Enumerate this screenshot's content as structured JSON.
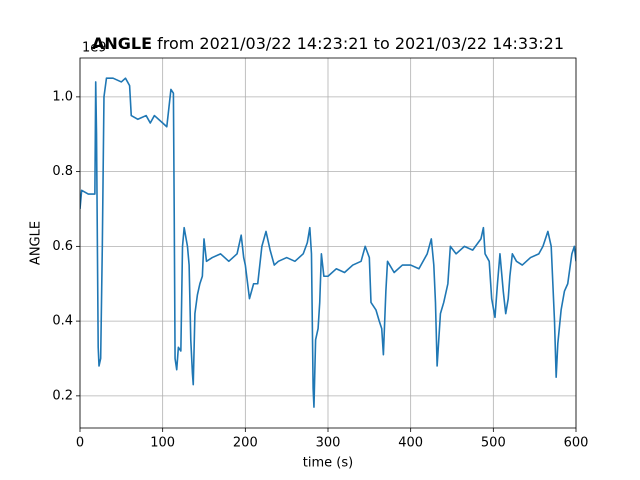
{
  "chart_data": {
    "type": "line",
    "title": {
      "variable": "ANGLE",
      "range": "from 2021/03/22 14:23:21 to 2021/03/22 14:33:21"
    },
    "xlabel": "time (s)",
    "ylabel": "ANGLE",
    "offset_label": "1e9",
    "xlim": [
      0,
      600
    ],
    "xticks": [
      0,
      100,
      200,
      300,
      400,
      500,
      600
    ],
    "ylim": [
      0.114,
      1.104
    ],
    "yticks": [
      0.2,
      0.4,
      0.6,
      0.8,
      {
        "value": 1.0,
        "label": "1.0"
      }
    ],
    "grid": true,
    "series": [
      {
        "name": "ANGLE",
        "color": "#1f77b4",
        "x": [
          0,
          2,
          10,
          18,
          19,
          20,
          22,
          23,
          25,
          27,
          29,
          32,
          40,
          50,
          55,
          60,
          62,
          70,
          80,
          85,
          90,
          100,
          105,
          110,
          113,
          114,
          115,
          117,
          119,
          122,
          124,
          126,
          130,
          132,
          134,
          136,
          137,
          139,
          142,
          145,
          148,
          150,
          153,
          160,
          170,
          180,
          190,
          195,
          198,
          200,
          205,
          210,
          215,
          220,
          225,
          230,
          235,
          240,
          250,
          260,
          270,
          275,
          278,
          280,
          282,
          283,
          285,
          288,
          290,
          292,
          295,
          300,
          310,
          320,
          330,
          340,
          345,
          350,
          352,
          358,
          362,
          365,
          367,
          370,
          372,
          380,
          390,
          400,
          410,
          420,
          425,
          428,
          430,
          432,
          434,
          436,
          440,
          445,
          448,
          455,
          465,
          475,
          485,
          488,
          490,
          495,
          498,
          502,
          505,
          508,
          512,
          515,
          518,
          520,
          523,
          528,
          535,
          545,
          555,
          560,
          566,
          570,
          572,
          574,
          576,
          578,
          582,
          586,
          590,
          595,
          598,
          600
        ],
        "values": [
          0.7,
          0.75,
          0.74,
          0.74,
          1.04,
          0.9,
          0.33,
          0.28,
          0.3,
          0.6,
          1.0,
          1.05,
          1.05,
          1.04,
          1.05,
          1.03,
          0.95,
          0.94,
          0.95,
          0.93,
          0.95,
          0.93,
          0.92,
          1.02,
          1.01,
          0.68,
          0.3,
          0.27,
          0.33,
          0.32,
          0.6,
          0.65,
          0.6,
          0.55,
          0.35,
          0.26,
          0.23,
          0.42,
          0.47,
          0.5,
          0.52,
          0.62,
          0.56,
          0.57,
          0.58,
          0.56,
          0.58,
          0.63,
          0.57,
          0.55,
          0.46,
          0.5,
          0.5,
          0.6,
          0.64,
          0.59,
          0.55,
          0.56,
          0.57,
          0.56,
          0.58,
          0.61,
          0.65,
          0.58,
          0.22,
          0.17,
          0.35,
          0.38,
          0.45,
          0.58,
          0.52,
          0.52,
          0.54,
          0.53,
          0.55,
          0.56,
          0.6,
          0.57,
          0.45,
          0.43,
          0.4,
          0.38,
          0.31,
          0.48,
          0.56,
          0.53,
          0.55,
          0.55,
          0.54,
          0.58,
          0.62,
          0.55,
          0.45,
          0.28,
          0.35,
          0.42,
          0.45,
          0.5,
          0.6,
          0.58,
          0.6,
          0.59,
          0.62,
          0.65,
          0.58,
          0.56,
          0.46,
          0.41,
          0.5,
          0.58,
          0.48,
          0.42,
          0.46,
          0.52,
          0.58,
          0.56,
          0.55,
          0.57,
          0.58,
          0.6,
          0.64,
          0.6,
          0.5,
          0.4,
          0.25,
          0.34,
          0.43,
          0.48,
          0.5,
          0.58,
          0.6,
          0.56
        ]
      }
    ]
  }
}
